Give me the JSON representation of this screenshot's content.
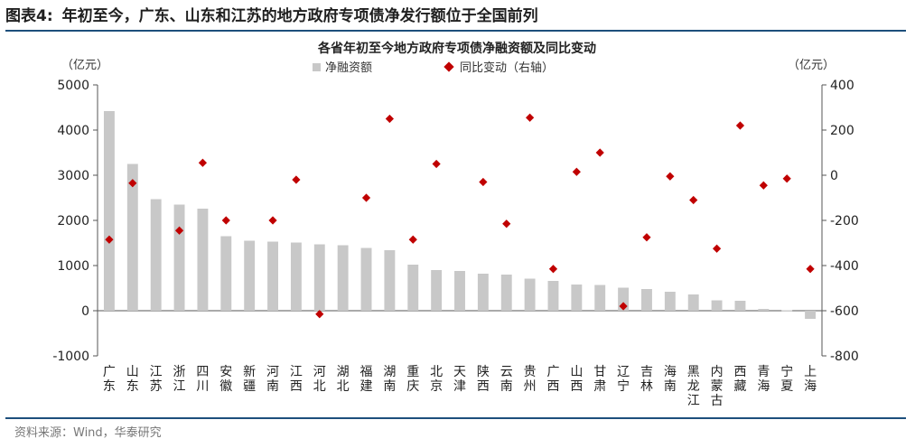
{
  "figure": {
    "number": "图表4:",
    "title": "年初至今，广东、山东和江苏的地方政府专项债净发行额位于全国前列",
    "source": "资料来源：Wind，华泰研究"
  },
  "chart_data": {
    "type": "bar",
    "title": "各省年初至今地方政府专项债净融资额及同比变动",
    "categories": [
      "广东",
      "山东",
      "江苏",
      "浙江",
      "四川",
      "安徽",
      "新疆",
      "河南",
      "江西",
      "河北",
      "湖北",
      "福建",
      "湖南",
      "重庆",
      "北京",
      "天津",
      "陕西",
      "云南",
      "贵州",
      "广西",
      "山西",
      "甘肃",
      "辽宁",
      "吉林",
      "海南",
      "黑龙江",
      "内蒙古",
      "西藏",
      "青海",
      "宁夏",
      "上海"
    ],
    "series": [
      {
        "name": "净融资额",
        "kind": "bar",
        "axis": "left",
        "color": "#c8c8c8",
        "values": [
          4420,
          3250,
          2470,
          2350,
          2260,
          1650,
          1550,
          1530,
          1510,
          1470,
          1450,
          1390,
          1340,
          1020,
          900,
          880,
          820,
          800,
          710,
          660,
          580,
          570,
          510,
          480,
          420,
          360,
          230,
          220,
          40,
          10,
          -180
        ]
      },
      {
        "name": "同比变动（右轴）",
        "kind": "scatter",
        "axis": "right",
        "color": "#c00000",
        "values": [
          -285,
          -35,
          -245,
          55,
          -200,
          -200,
          -20,
          -615,
          -100,
          250,
          -285,
          50,
          -30,
          -215,
          255,
          -415,
          15,
          100,
          -580,
          -275,
          -5,
          -110,
          -325,
          220,
          -45,
          -15,
          -415
        ]
      }
    ],
    "scatter_categories": [
      "广东",
      "山东",
      "浙江",
      "四川",
      "安徽",
      "河南",
      "江西",
      "河北",
      "福建",
      "湖南",
      "重庆",
      "北京",
      "陕西",
      "云南",
      "贵州",
      "广西",
      "山西",
      "甘肃",
      "辽宁",
      "吉林",
      "海南",
      "黑龙江",
      "内蒙古",
      "西藏",
      "青海",
      "宁夏",
      "上海"
    ],
    "left_axis": {
      "unit": "（亿元）",
      "min": -1000,
      "max": 5000,
      "ticks": [
        5000,
        4000,
        3000,
        2000,
        1000,
        0,
        -1000
      ]
    },
    "right_axis": {
      "unit": "（亿元）",
      "min": -800,
      "max": 400,
      "ticks": [
        400,
        200,
        0,
        -200,
        -400,
        -600,
        -800
      ]
    },
    "legend_placement": "top-center",
    "grid": false
  }
}
